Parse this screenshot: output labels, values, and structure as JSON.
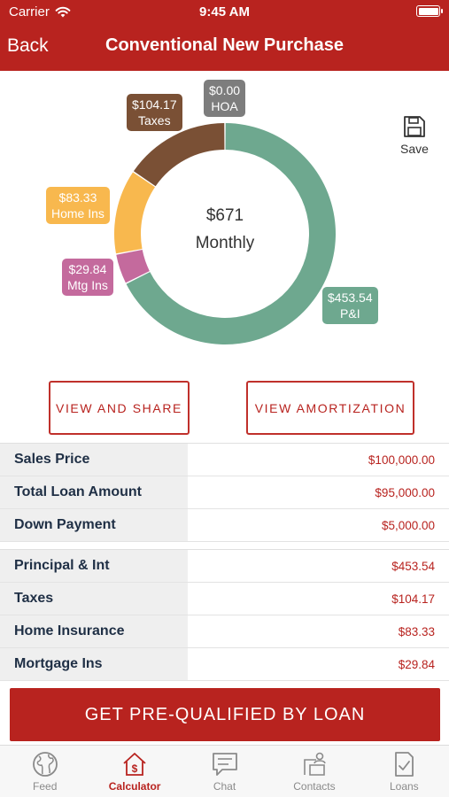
{
  "status_bar": {
    "carrier": "Carrier",
    "time": "9:45 AM"
  },
  "nav": {
    "back_label": "Back",
    "title": "Conventional New Purchase"
  },
  "chart": {
    "center_amount": "$671",
    "center_label": "Monthly",
    "segments": [
      {
        "key": "pi",
        "value": 453.54,
        "value_label": "$453.54",
        "label": "P&I",
        "color": "#6ea88f"
      },
      {
        "key": "mtg_ins",
        "value": 29.84,
        "value_label": "$29.84",
        "label": "Mtg Ins",
        "color": "#c46a9d"
      },
      {
        "key": "home_ins",
        "value": 83.33,
        "value_label": "$83.33",
        "label": "Home Ins",
        "color": "#f8b84e"
      },
      {
        "key": "taxes",
        "value": 104.17,
        "value_label": "$104.17",
        "label": "Taxes",
        "color": "#7a5035"
      },
      {
        "key": "hoa",
        "value": 0.0,
        "value_label": "$0.00",
        "label": "HOA",
        "color": "#7d7d7d"
      }
    ]
  },
  "save": {
    "label": "Save"
  },
  "buttons": {
    "view_share": "VIEW AND SHARE",
    "view_amortization": "VIEW AMORTIZATION"
  },
  "loan_table": [
    {
      "label": "Sales Price",
      "value": "$100,000.00"
    },
    {
      "label": "Total Loan Amount",
      "value": "$95,000.00"
    },
    {
      "label": "Down Payment",
      "value": "$5,000.00"
    }
  ],
  "payment_table": [
    {
      "label": "Principal & Int",
      "value": "$453.54"
    },
    {
      "label": "Taxes",
      "value": "$104.17"
    },
    {
      "label": "Home Insurance",
      "value": "$83.33"
    },
    {
      "label": "Mortgage Ins",
      "value": "$29.84"
    }
  ],
  "cta": {
    "label": "GET PRE-QUALIFIED BY LOAN"
  },
  "tabs": [
    {
      "label": "Feed",
      "icon": "globe-icon",
      "active": false
    },
    {
      "label": "Calculator",
      "icon": "calculator-house-icon",
      "active": true
    },
    {
      "label": "Chat",
      "icon": "chat-icon",
      "active": false
    },
    {
      "label": "Contacts",
      "icon": "contacts-icon",
      "active": false
    },
    {
      "label": "Loans",
      "icon": "loans-document-icon",
      "active": false
    }
  ],
  "colors": {
    "brand_red": "#b8231f",
    "label_navy": "#1f2f45"
  }
}
